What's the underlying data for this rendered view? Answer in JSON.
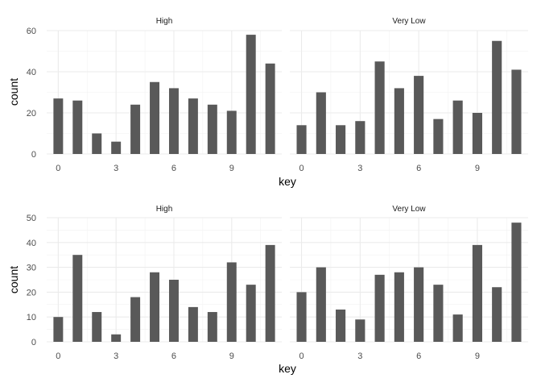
{
  "colors": {
    "bar": "#595959",
    "grid_major": "#ebebeb",
    "grid_minor": "#f2f2f2",
    "text": "#4d4d4d",
    "axis_title": "#000000",
    "strip_text": "#1a1a1a"
  },
  "chart_data": [
    {
      "type": "bar",
      "xlabel": "key",
      "ylabel": "count",
      "ylim": [
        0,
        60
      ],
      "yticks": [
        0,
        20,
        40,
        60
      ],
      "xticks": [
        0,
        3,
        6,
        9
      ],
      "grid": true,
      "panels": [
        {
          "strip": "High",
          "x": [
            0,
            1,
            2,
            3,
            4,
            5,
            6,
            7,
            8,
            9,
            10,
            11
          ],
          "values": [
            27,
            26,
            10,
            6,
            24,
            35,
            32,
            27,
            24,
            21,
            58,
            44
          ]
        },
        {
          "strip": "Very Low",
          "x": [
            0,
            1,
            2,
            3,
            4,
            5,
            6,
            7,
            8,
            9,
            10,
            11
          ],
          "values": [
            14,
            30,
            14,
            16,
            45,
            32,
            38,
            17,
            26,
            20,
            55,
            41
          ]
        }
      ]
    },
    {
      "type": "bar",
      "xlabel": "key",
      "ylabel": "count",
      "ylim": [
        0,
        50
      ],
      "yticks": [
        0,
        10,
        20,
        30,
        40,
        50
      ],
      "xticks": [
        0,
        3,
        6,
        9
      ],
      "grid": true,
      "panels": [
        {
          "strip": "High",
          "x": [
            0,
            1,
            2,
            3,
            4,
            5,
            6,
            7,
            8,
            9,
            10,
            11
          ],
          "values": [
            10,
            35,
            12,
            3,
            18,
            28,
            25,
            14,
            12,
            32,
            23,
            39
          ]
        },
        {
          "strip": "Very Low",
          "x": [
            0,
            1,
            2,
            3,
            4,
            5,
            6,
            7,
            8,
            9,
            10,
            11
          ],
          "values": [
            20,
            30,
            13,
            9,
            27,
            28,
            30,
            23,
            11,
            39,
            22,
            48
          ]
        }
      ]
    }
  ]
}
